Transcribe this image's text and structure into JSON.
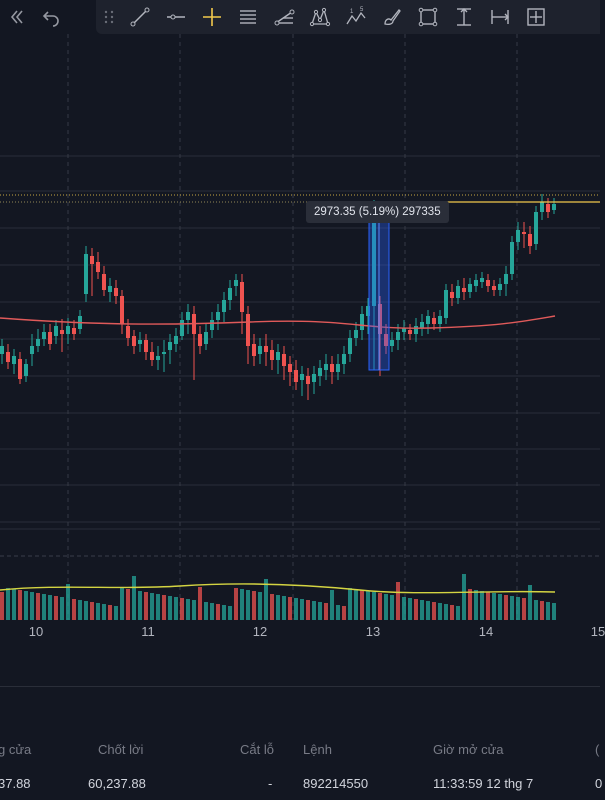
{
  "toolbar": {
    "left_icons": [
      "double-chevron-left-icon",
      "undo-icon"
    ],
    "tools": [
      "drag-handle-icon",
      "trend-line-icon",
      "horizontal-line-icon",
      "crosshair-icon",
      "parallel-channel-icon",
      "fib-retracement-icon",
      "pattern-icon",
      "elliott-wave-icon",
      "brush-icon",
      "rectangle-icon",
      "price-range-icon",
      "date-range-icon",
      "date-price-range-icon"
    ],
    "elliott_labels": [
      "1",
      "5"
    ],
    "accent_color": "#f2c94c"
  },
  "measure": {
    "label": "2973.35 (5.19%) 297335"
  },
  "xaxis": {
    "labels": [
      "10",
      "11",
      "12",
      "13",
      "14",
      "15"
    ]
  },
  "colors": {
    "up": "#26a69a",
    "down": "#ef5350",
    "ma": "#e05a5a",
    "volume_ma": "#d4d442",
    "grid": "#2a2e39",
    "measure_fill": "#2962ff"
  },
  "table": {
    "headers": [
      "g cửa",
      "Chốt lời",
      "Cắt lỗ",
      "Lệnh",
      "Giờ mở cửa",
      "("
    ],
    "row": [
      "37.88",
      "60,237.88",
      "-",
      "892214550",
      "11:33:59 12 thg 7",
      "0"
    ]
  }
}
